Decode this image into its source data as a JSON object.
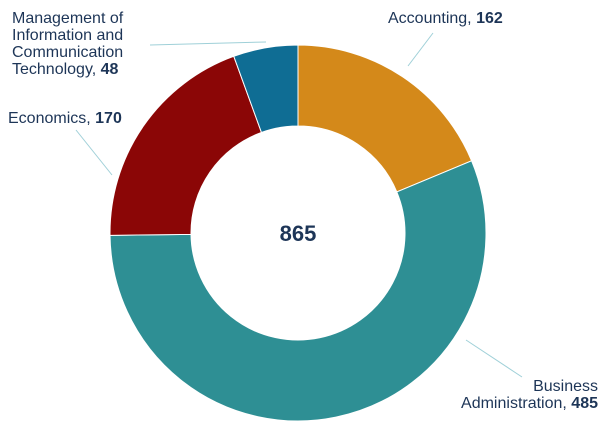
{
  "chart_data": {
    "type": "donut",
    "categories": [
      "Accounting",
      "Business Administration",
      "Economics",
      "Management of Information and Communication Technology"
    ],
    "values": [
      162,
      485,
      170,
      48
    ],
    "colors": [
      "#d4891a",
      "#2e8f94",
      "#8b0606",
      "#0f6d94"
    ],
    "center_label": 865
  }
}
